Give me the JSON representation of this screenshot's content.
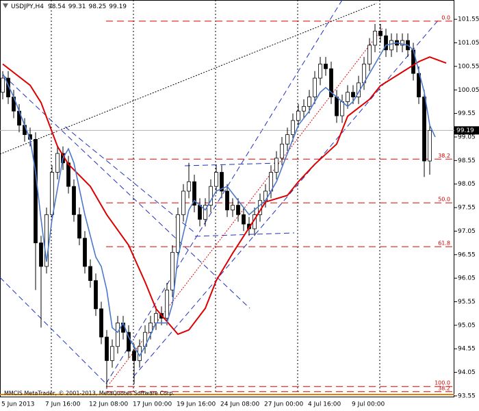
{
  "chart_data": {
    "type": "candlestick",
    "symbol": "USDJPY,H4",
    "footer": "MMCIS MetaTrader, © 2001-2013, MetaQuotes Software Corp.",
    "categories": [
      "5 Jun 2013",
      null,
      null,
      null,
      null,
      null,
      null,
      null,
      "7 Jun 16:00",
      null,
      null,
      null,
      null,
      null,
      null,
      null,
      "12 Jun 08:00",
      null,
      null,
      null,
      null,
      null,
      null,
      null,
      "17 Jun 00:00",
      null,
      null,
      null,
      null,
      null,
      null,
      null,
      "19 Jun 16:00",
      null,
      null,
      null,
      null,
      null,
      null,
      null,
      "24 Jun 08:00",
      null,
      null,
      null,
      null,
      null,
      null,
      null,
      "27 Jun 00:00",
      null,
      null,
      null,
      null,
      null,
      null,
      null,
      "4 Jul 16:00",
      null,
      null,
      null,
      null,
      null,
      null,
      null,
      "9 Jul 00:00",
      null,
      null,
      null,
      null,
      null,
      null,
      null,
      null,
      null,
      null,
      null,
      null,
      null,
      null
    ],
    "open": [
      100.0,
      100.3,
      99.9,
      99.6,
      99.3,
      99.1,
      99.0,
      96.8,
      96.3,
      97.4,
      98.3,
      98.7,
      98.5,
      98.0,
      97.4,
      96.9,
      96.3,
      96.0,
      95.4,
      94.8,
      94.3,
      94.6,
      95.1,
      94.9,
      94.5,
      94.3,
      94.6,
      94.9,
      95.1,
      95.3,
      95.2,
      95.8,
      96.6,
      97.4,
      97.9,
      98.1,
      97.6,
      97.3,
      97.6,
      98.0,
      98.3,
      97.9,
      97.5,
      97.6,
      97.4,
      97.2,
      97.1,
      97.4,
      97.7,
      97.9,
      98.3,
      98.6,
      98.9,
      99.1,
      99.4,
      99.6,
      99.7,
      99.9,
      100.3,
      100.6,
      100.5,
      99.9,
      99.5,
      99.8,
      100.0,
      99.9,
      100.2,
      100.6,
      101.0,
      101.3,
      101.2,
      100.9,
      101.1,
      101.0,
      101.1,
      100.9,
      100.4,
      99.9,
      98.54
    ],
    "high": [
      100.45,
      100.45,
      100.05,
      99.75,
      99.45,
      99.25,
      99.15,
      96.95,
      97.55,
      98.45,
      98.85,
      98.85,
      98.65,
      98.15,
      97.55,
      97.05,
      96.45,
      96.15,
      95.55,
      94.95,
      94.75,
      95.25,
      95.25,
      95.05,
      94.65,
      94.75,
      95.05,
      95.25,
      95.45,
      95.45,
      95.95,
      96.75,
      97.55,
      98.05,
      98.5,
      98.25,
      97.75,
      97.75,
      98.15,
      98.45,
      98.45,
      98.05,
      97.75,
      97.75,
      97.55,
      97.35,
      97.55,
      97.85,
      98.05,
      98.45,
      98.75,
      99.05,
      99.25,
      99.55,
      99.75,
      99.85,
      100.05,
      100.45,
      100.75,
      100.75,
      100.65,
      100.05,
      99.95,
      100.15,
      100.15,
      100.35,
      100.75,
      101.15,
      101.45,
      101.45,
      101.35,
      101.25,
      101.25,
      101.25,
      101.25,
      101.05,
      100.55,
      100.05,
      99.31
    ],
    "low": [
      99.85,
      99.75,
      99.45,
      99.15,
      98.95,
      98.85,
      95.8,
      95.0,
      96.15,
      97.25,
      98.15,
      98.35,
      97.85,
      97.25,
      96.75,
      96.15,
      95.85,
      95.25,
      94.65,
      93.7,
      94.15,
      94.45,
      94.75,
      94.35,
      93.8,
      94.15,
      94.45,
      94.75,
      94.95,
      95.05,
      95.05,
      95.65,
      96.45,
      97.25,
      97.75,
      97.45,
      97.15,
      97.15,
      97.45,
      97.85,
      97.75,
      97.35,
      97.35,
      97.25,
      97.05,
      96.95,
      96.95,
      97.25,
      97.55,
      97.75,
      98.15,
      98.45,
      98.75,
      98.95,
      99.25,
      99.45,
      99.55,
      99.75,
      100.15,
      100.35,
      99.75,
      99.35,
      99.35,
      99.65,
      99.75,
      99.75,
      100.05,
      100.45,
      100.85,
      101.05,
      100.75,
      100.75,
      100.85,
      100.85,
      100.75,
      100.25,
      99.75,
      98.2,
      98.25
    ],
    "close": [
      100.3,
      99.9,
      99.6,
      99.3,
      99.1,
      99.0,
      96.8,
      96.3,
      97.4,
      98.3,
      98.7,
      98.5,
      98.0,
      97.4,
      96.9,
      96.3,
      96.0,
      95.4,
      94.8,
      94.3,
      94.6,
      95.1,
      94.9,
      94.5,
      94.3,
      94.6,
      94.9,
      95.1,
      95.3,
      95.2,
      95.8,
      96.6,
      97.4,
      97.9,
      98.1,
      97.6,
      97.3,
      97.6,
      98.0,
      98.3,
      97.9,
      97.5,
      97.6,
      97.4,
      97.2,
      97.1,
      97.4,
      97.7,
      97.9,
      98.3,
      98.6,
      98.9,
      99.1,
      99.4,
      99.6,
      99.7,
      99.9,
      100.3,
      100.6,
      100.5,
      99.9,
      99.5,
      99.8,
      100.0,
      99.9,
      100.2,
      100.6,
      101.0,
      101.3,
      101.2,
      100.9,
      101.1,
      101.0,
      101.1,
      100.9,
      100.4,
      99.9,
      98.54,
      99.19
    ],
    "lines": [
      {
        "color": "#dd0000",
        "x": [
          0,
          5,
          7,
          10,
          12,
          16,
          19,
          23,
          26,
          28,
          32,
          34,
          37,
          39,
          42,
          46,
          48,
          52,
          54,
          57,
          61,
          63,
          67,
          69,
          73,
          76,
          78,
          81
        ],
        "values": [
          100.6,
          100.15,
          99.78,
          98.85,
          98.47,
          98.0,
          97.4,
          96.75,
          95.97,
          95.4,
          94.86,
          94.95,
          95.41,
          96.0,
          96.58,
          97.3,
          97.67,
          97.81,
          98.1,
          98.47,
          98.9,
          99.49,
          99.85,
          100.14,
          100.43,
          100.65,
          100.75,
          100.62
        ]
      },
      {
        "color": "#4a78c8",
        "x": [
          0,
          2,
          4,
          5,
          6,
          7,
          8,
          9,
          11,
          12,
          13,
          15,
          17,
          18,
          19,
          20,
          21,
          22,
          23,
          25,
          26,
          28,
          30,
          31,
          32,
          34,
          35,
          37,
          39,
          41,
          43,
          45,
          47,
          48,
          50,
          52,
          54,
          56,
          58,
          59,
          61,
          63,
          64,
          66,
          68,
          70,
          72,
          74,
          75,
          77,
          78,
          79
        ],
        "values": [
          100.4,
          99.9,
          99.3,
          99.0,
          98.3,
          97.3,
          96.4,
          97.3,
          98.6,
          98.8,
          98.5,
          97.4,
          96.5,
          96.3,
          95.8,
          95.0,
          94.9,
          95.1,
          94.8,
          94.4,
          94.6,
          95.1,
          95.1,
          95.5,
          96.5,
          97.5,
          97.7,
          97.5,
          97.9,
          98.0,
          97.7,
          97.4,
          97.6,
          97.7,
          98.1,
          98.7,
          99.3,
          99.6,
          100.0,
          100.1,
          99.9,
          99.7,
          99.8,
          100.2,
          100.6,
          101.0,
          101.05,
          101.0,
          100.9,
          100.0,
          99.3,
          99.05
        ]
      }
    ],
    "fib_levels": [
      {
        "label": "0.0",
        "value": 101.51
      },
      {
        "label": "38.2",
        "value": 98.58
      },
      {
        "label": "50.0",
        "value": 97.65
      },
      {
        "label": "61.8",
        "value": 96.72
      },
      {
        "label": "100.0",
        "value": 93.75
      },
      {
        "label": "38.2",
        "value": 93.64
      }
    ],
    "xlim": [
      -0.5,
      82.5
    ],
    "ylim": [
      93.52,
      101.96
    ],
    "yticks": [
      101.55,
      101.05,
      100.55,
      100.05,
      99.55,
      99.05,
      98.55,
      98.05,
      97.55,
      97.05,
      96.55,
      96.05,
      95.55,
      95.05,
      94.55,
      94.05,
      93.55
    ]
  }
}
